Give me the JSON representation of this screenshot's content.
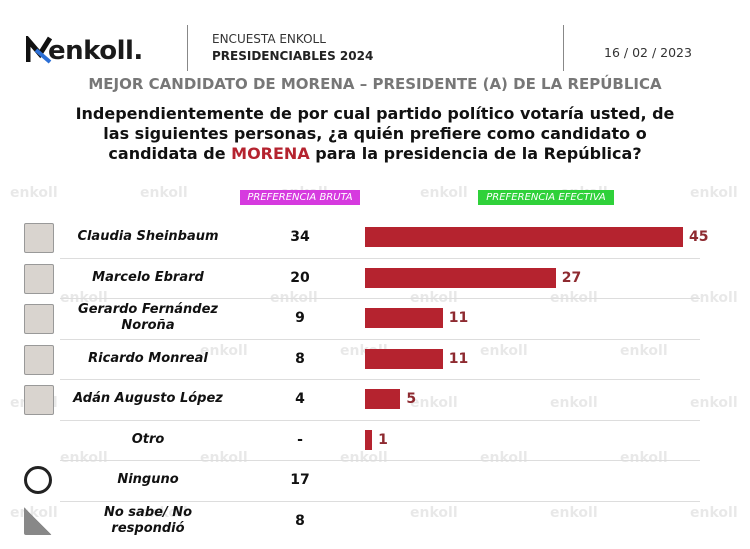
{
  "chart_data": {
    "type": "bar",
    "brand": "enkoll.",
    "survey": "ENCUESTA ENKOLL",
    "season": "PRESIDENCIABLES 2024",
    "date": "16 / 02 / 2023",
    "title": "MEJOR CANDIDATO DE MORENA – PRESIDENTE (A) DE LA REPÚBLICA",
    "question": [
      "Independientemente de por cual partido político votaría usted, de las siguientes personas, ¿a quién prefiere como candidato o candidata de ",
      "MORENA",
      " para la presidencia de la República?"
    ],
    "watermark": "enkoll",
    "categories": [
      "Claudia Sheinbaum",
      "Marcelo Ebrard",
      "Gerardo Fernández Noroña",
      "Ricardo Monreal",
      "Adán Augusto López",
      "Otro",
      "Ninguno",
      "No sabe/ No respondió"
    ],
    "series": [
      {
        "name": "PREFERENCIA BRUTA",
        "color": "#d63adf",
        "values": [
          34,
          20,
          9,
          8,
          4,
          null,
          17,
          8
        ],
        "value_labels": [
          "34",
          "20",
          "9",
          "8",
          "4",
          "-",
          "17",
          "8"
        ]
      },
      {
        "name": "PREFERENCIA EFECTIVA",
        "color": "#2fd13a",
        "bar_color": "#b5232f",
        "values": [
          45,
          27,
          11,
          11,
          5,
          1,
          null,
          null
        ]
      }
    ]
  }
}
